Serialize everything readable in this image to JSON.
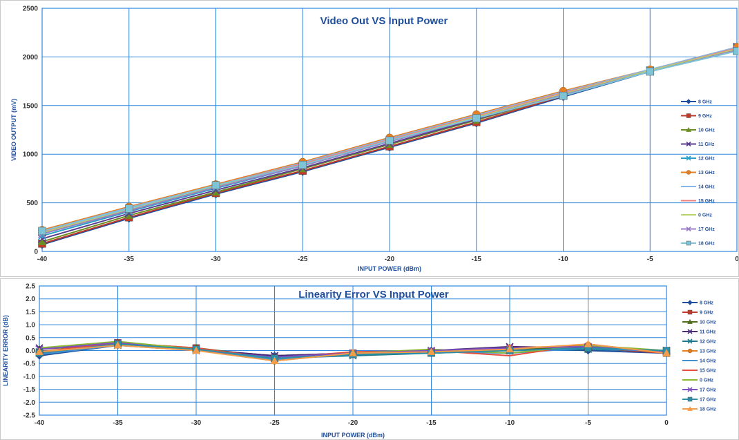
{
  "chart_data": [
    {
      "type": "line",
      "title": "Video Out VS Input Power",
      "xlabel": "INPUT POWER (dBm)",
      "ylabel": "VIDEO OUTPUT (mV)",
      "xlim": [
        -40,
        0
      ],
      "ylim": [
        0,
        2500
      ],
      "x_ticks": [
        -40,
        -35,
        -30,
        -25,
        -20,
        -15,
        -10,
        -5,
        0
      ],
      "y_ticks": [
        0,
        500,
        1000,
        1500,
        2000,
        2500
      ],
      "grid": true,
      "legend_position": "right",
      "x": [
        -40,
        -35,
        -30,
        -25,
        -20,
        -15,
        -10,
        -5,
        0
      ],
      "series": [
        {
          "name": "8 GHz",
          "color": "#1f4e9c",
          "marker": "diamond",
          "values": [
            70,
            340,
            590,
            820,
            1070,
            1320,
            1590,
            1850,
            2100
          ]
        },
        {
          "name": "9 GHz",
          "color": "#c0392b",
          "marker": "square",
          "values": [
            80,
            350,
            600,
            830,
            1080,
            1330,
            1600,
            1860,
            2100
          ]
        },
        {
          "name": "10 GHz",
          "color": "#6b8e23",
          "marker": "triangle",
          "values": [
            100,
            370,
            610,
            850,
            1100,
            1350,
            1610,
            1860,
            2100
          ]
        },
        {
          "name": "11 GHz",
          "color": "#5b3d8f",
          "marker": "x",
          "values": [
            130,
            390,
            630,
            860,
            1110,
            1360,
            1610,
            1860,
            2100
          ]
        },
        {
          "name": "12 GHz",
          "color": "#2aa0c8",
          "marker": "x",
          "values": [
            160,
            410,
            650,
            880,
            1130,
            1370,
            1620,
            1860,
            2090
          ]
        },
        {
          "name": "13 GHz",
          "color": "#e67e22",
          "marker": "circle",
          "values": [
            220,
            460,
            690,
            920,
            1170,
            1410,
            1650,
            1870,
            2100
          ]
        },
        {
          "name": "14 GHz",
          "color": "#85b8e6",
          "marker": "none",
          "values": [
            210,
            450,
            680,
            910,
            1160,
            1400,
            1640,
            1870,
            2100
          ]
        },
        {
          "name": "15 GHz",
          "color": "#f08080",
          "marker": "none",
          "values": [
            200,
            440,
            680,
            900,
            1150,
            1390,
            1630,
            1860,
            2090
          ]
        },
        {
          "name": "0 GHz",
          "color": "#b5d36a",
          "marker": "none",
          "values": [
            190,
            430,
            670,
            890,
            1140,
            1380,
            1620,
            1860,
            2080
          ]
        },
        {
          "name": "17 GHz",
          "color": "#9b7fc4",
          "marker": "x",
          "values": [
            180,
            420,
            660,
            880,
            1130,
            1370,
            1610,
            1850,
            2070
          ]
        },
        {
          "name": "18 GHz",
          "color": "#7fc3d6",
          "marker": "square",
          "values": [
            210,
            440,
            680,
            890,
            1140,
            1370,
            1600,
            1850,
            2060
          ]
        }
      ]
    },
    {
      "type": "line",
      "title": "Linearity Error VS Input Power",
      "xlabel": "INPUT POWER (dBm)",
      "ylabel": "LINEARITY ERROR (dB)",
      "xlim": [
        -40,
        0
      ],
      "ylim": [
        -2.5,
        2.5
      ],
      "x_ticks": [
        -40,
        -35,
        -30,
        -25,
        -20,
        -15,
        -10,
        -5,
        0
      ],
      "y_ticks": [
        -2.5,
        -2.0,
        -1.5,
        -1.0,
        -0.5,
        0.0,
        0.5,
        1.0,
        1.5,
        2.0,
        2.5
      ],
      "y_tick_labels": [
        "-2.5",
        "-2.0",
        "-1.5",
        "-1.0",
        "-0.5",
        "0.0",
        "0.5",
        "1.0",
        "1.5",
        "2.0",
        "2.5"
      ],
      "grid": true,
      "legend_position": "right",
      "x": [
        -40,
        -35,
        -30,
        -25,
        -20,
        -15,
        -10,
        -5,
        0
      ],
      "series": [
        {
          "name": "8 GHz",
          "color": "#1f4e9c",
          "marker": "diamond",
          "values": [
            -0.2,
            0.2,
            0.05,
            -0.2,
            -0.1,
            0.0,
            0.1,
            0.0,
            -0.1
          ]
        },
        {
          "name": "9 GHz",
          "color": "#c0392b",
          "marker": "square",
          "values": [
            -0.1,
            0.3,
            0.1,
            -0.3,
            -0.1,
            -0.05,
            0.0,
            0.1,
            -0.1
          ]
        },
        {
          "name": "10 GHz",
          "color": "#4f6b1c",
          "marker": "triangle",
          "values": [
            0.05,
            0.25,
            0.1,
            -0.25,
            -0.15,
            -0.1,
            0.05,
            0.15,
            -0.05
          ]
        },
        {
          "name": "11 GHz",
          "color": "#4a2c7a",
          "marker": "x",
          "values": [
            0.1,
            0.3,
            0.05,
            -0.2,
            -0.1,
            0.0,
            0.15,
            0.1,
            0.0
          ]
        },
        {
          "name": "12 GHz",
          "color": "#1d7a8c",
          "marker": "x",
          "values": [
            -0.05,
            0.2,
            0.0,
            -0.3,
            -0.2,
            -0.1,
            0.0,
            0.05,
            0.0
          ]
        },
        {
          "name": "13 GHz",
          "color": "#e67e22",
          "marker": "circle",
          "values": [
            -0.1,
            0.25,
            0.05,
            -0.4,
            -0.1,
            -0.1,
            0.1,
            0.2,
            -0.1
          ]
        },
        {
          "name": "14 GHz",
          "color": "#3f8fd2",
          "marker": "none",
          "values": [
            -0.15,
            0.2,
            0.05,
            -0.35,
            -0.15,
            -0.05,
            -0.1,
            0.1,
            -0.05
          ]
        },
        {
          "name": "15 GHz",
          "color": "#e74c3c",
          "marker": "none",
          "values": [
            -0.05,
            0.3,
            0.1,
            -0.3,
            -0.05,
            0.0,
            -0.2,
            0.25,
            -0.1
          ]
        },
        {
          "name": "0 GHz",
          "color": "#8ab833",
          "marker": "none",
          "values": [
            0.1,
            0.35,
            0.05,
            -0.3,
            -0.1,
            0.05,
            -0.1,
            0.2,
            0.0
          ]
        },
        {
          "name": "17 GHz",
          "color": "#7d4fc0",
          "marker": "x",
          "values": [
            0.05,
            0.3,
            0.0,
            -0.25,
            -0.1,
            0.0,
            0.1,
            0.15,
            -0.05
          ]
        },
        {
          "name": "17 GHz",
          "color": "#2b8fa8",
          "marker": "square",
          "values": [
            -0.1,
            0.25,
            0.05,
            -0.3,
            -0.15,
            -0.1,
            0.0,
            0.1,
            0.0
          ]
        },
        {
          "name": "18 GHz",
          "color": "#f39c4a",
          "marker": "triangle",
          "values": [
            -0.05,
            0.2,
            0.0,
            -0.4,
            -0.1,
            -0.05,
            0.05,
            0.25,
            -0.1
          ]
        }
      ]
    }
  ]
}
